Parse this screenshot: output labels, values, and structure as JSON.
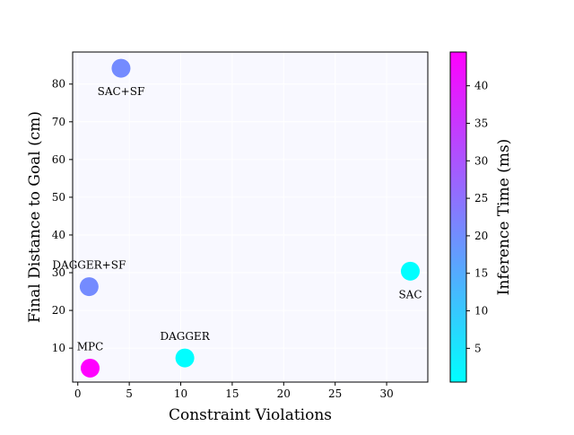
{
  "chart_data": {
    "type": "scatter",
    "title": "",
    "xlabel": "Constraint Violations",
    "ylabel": "Final Distance to Goal (cm)",
    "xlim": [
      -0.5,
      34
    ],
    "ylim": [
      1.0,
      88.5
    ],
    "xticks": [
      0,
      5,
      10,
      15,
      20,
      25,
      30
    ],
    "yticks": [
      10,
      20,
      30,
      40,
      50,
      60,
      70,
      80
    ],
    "grid": true,
    "background_color": "#f8f8ff",
    "colormap": {
      "name": "cool",
      "label": "Inference Time (ms)",
      "min": 0.5,
      "max": 44.5,
      "ticks": [
        5,
        10,
        15,
        20,
        25,
        30,
        35,
        40
      ],
      "colors": [
        "#00ffff",
        "#ff00ff"
      ]
    },
    "points": [
      {
        "label": "SAC+SF",
        "x": 4.2,
        "y": 84.2,
        "inference_ms": 20.5,
        "label_position": "below"
      },
      {
        "label": "DAGGER+SF",
        "x": 1.1,
        "y": 26.3,
        "inference_ms": 20.5,
        "label_position": "above"
      },
      {
        "label": "SAC",
        "x": 32.3,
        "y": 30.4,
        "inference_ms": 0.6,
        "label_position": "below"
      },
      {
        "label": "DAGGER",
        "x": 10.4,
        "y": 7.4,
        "inference_ms": 0.6,
        "label_position": "above"
      },
      {
        "label": "MPC",
        "x": 1.2,
        "y": 4.7,
        "inference_ms": 44.5,
        "label_position": "above"
      }
    ]
  }
}
